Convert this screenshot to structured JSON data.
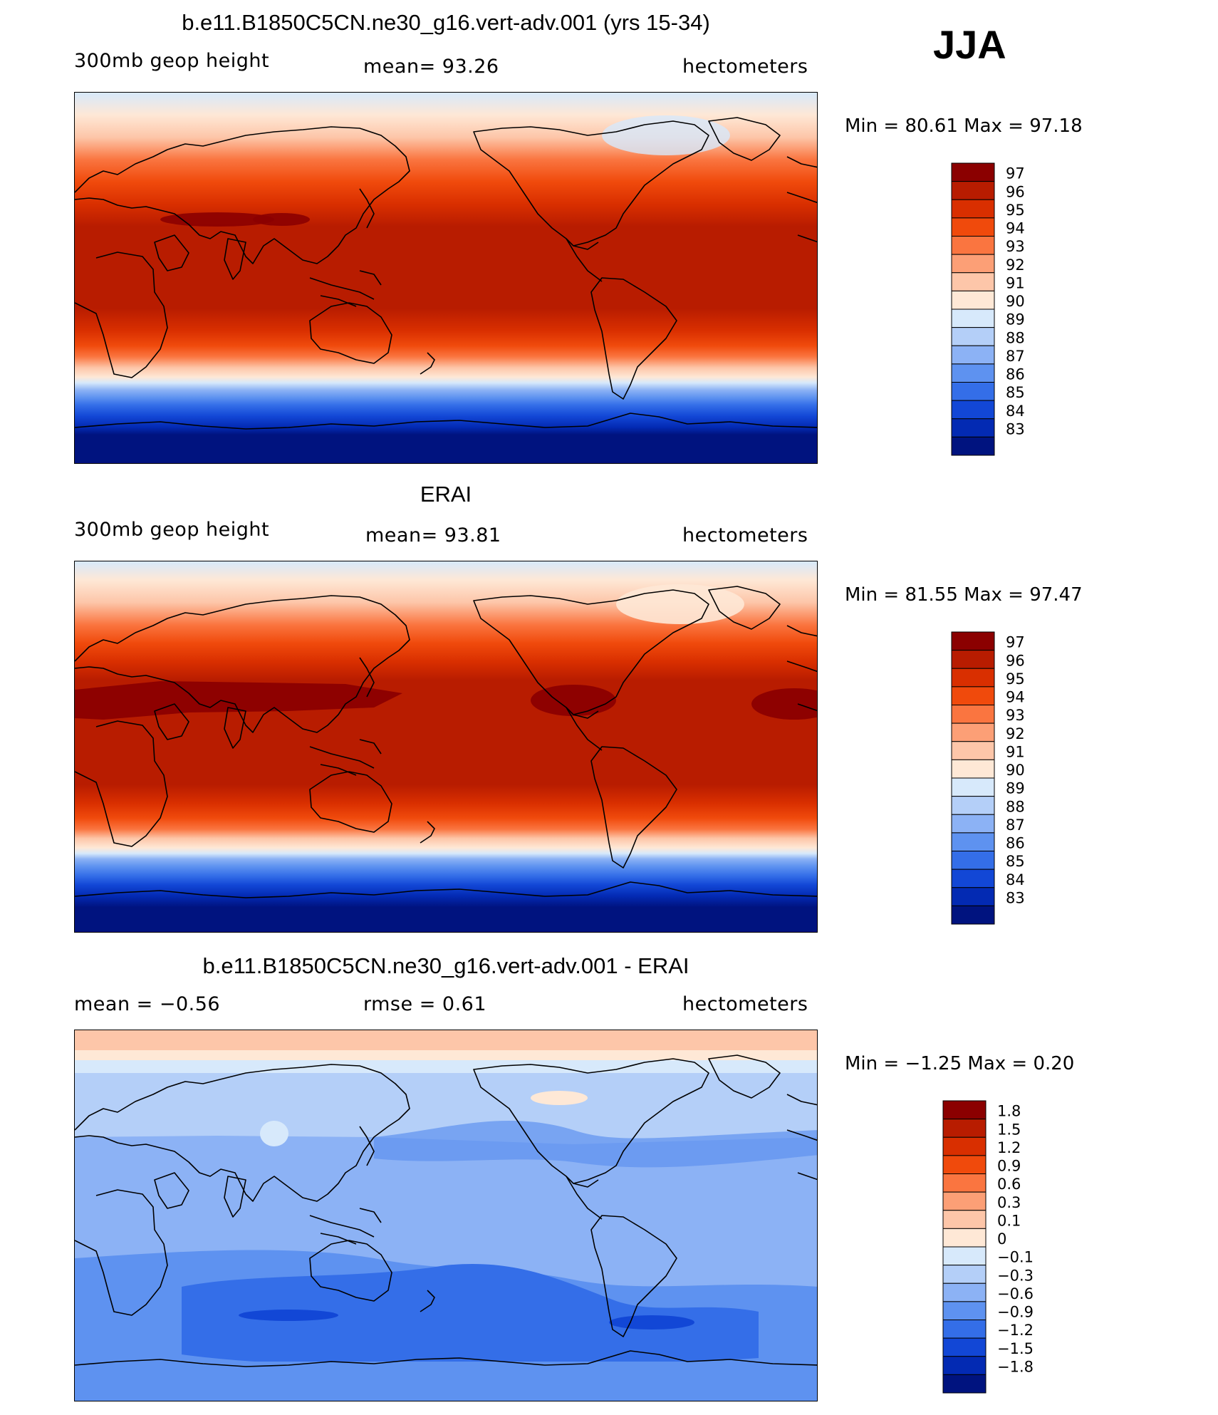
{
  "season": "JJA",
  "panels": [
    {
      "title": "b.e11.B1850C5CN.ne30_g16.vert-adv.001 (yrs 15-34)",
      "left_label": "300mb  geop  height",
      "center_label": "mean=   93.26",
      "right_label": "hectometers",
      "minmax": "Min  =    80.61  Max  =    97.18",
      "colorbar": {
        "labels": [
          "97",
          "96",
          "95",
          "94",
          "93",
          "92",
          "91",
          "90",
          "89",
          "88",
          "87",
          "86",
          "85",
          "84",
          "83"
        ],
        "colors": [
          "#8b0000",
          "#b81c00",
          "#d92f00",
          "#f04a0c",
          "#fa7540",
          "#fc9f76",
          "#fdc6a9",
          "#fee8d6",
          "#d7e9fb",
          "#b4cff8",
          "#8cb2f5",
          "#5e92f0",
          "#346ee8",
          "#1247d6",
          "#032ab3",
          "#00137f"
        ]
      }
    },
    {
      "title": "ERAI",
      "left_label": "300mb  geop  height",
      "center_label": "mean=   93.81",
      "right_label": "hectometers",
      "minmax": "Min  =    81.55  Max  =    97.47",
      "colorbar": {
        "labels": [
          "97",
          "96",
          "95",
          "94",
          "93",
          "92",
          "91",
          "90",
          "89",
          "88",
          "87",
          "86",
          "85",
          "84",
          "83"
        ],
        "colors": [
          "#8b0000",
          "#b81c00",
          "#d92f00",
          "#f04a0c",
          "#fa7540",
          "#fc9f76",
          "#fdc6a9",
          "#fee8d6",
          "#d7e9fb",
          "#b4cff8",
          "#8cb2f5",
          "#5e92f0",
          "#346ee8",
          "#1247d6",
          "#032ab3",
          "#00137f"
        ]
      }
    },
    {
      "title": "b.e11.B1850C5CN.ne30_g16.vert-adv.001 - ERAI",
      "left_label": "mean  =    −0.56",
      "center_label": "rmse  =     0.61",
      "right_label": "hectometers",
      "minmax": "Min  =   −1.25  Max  =     0.20",
      "colorbar": {
        "labels": [
          "1.8",
          "1.5",
          "1.2",
          "0.9",
          "0.6",
          "0.3",
          "0.1",
          "0",
          "−0.1",
          "−0.3",
          "−0.6",
          "−0.9",
          "−1.2",
          "−1.5",
          "−1.8"
        ],
        "colors": [
          "#8b0000",
          "#b81c00",
          "#d92f00",
          "#f04a0c",
          "#fa7540",
          "#fc9f76",
          "#fdc6a9",
          "#fee8d6",
          "#d7e9fb",
          "#b4cff8",
          "#8cb2f5",
          "#5e92f0",
          "#346ee8",
          "#1247d6",
          "#032ab3",
          "#00137f"
        ]
      }
    }
  ]
}
